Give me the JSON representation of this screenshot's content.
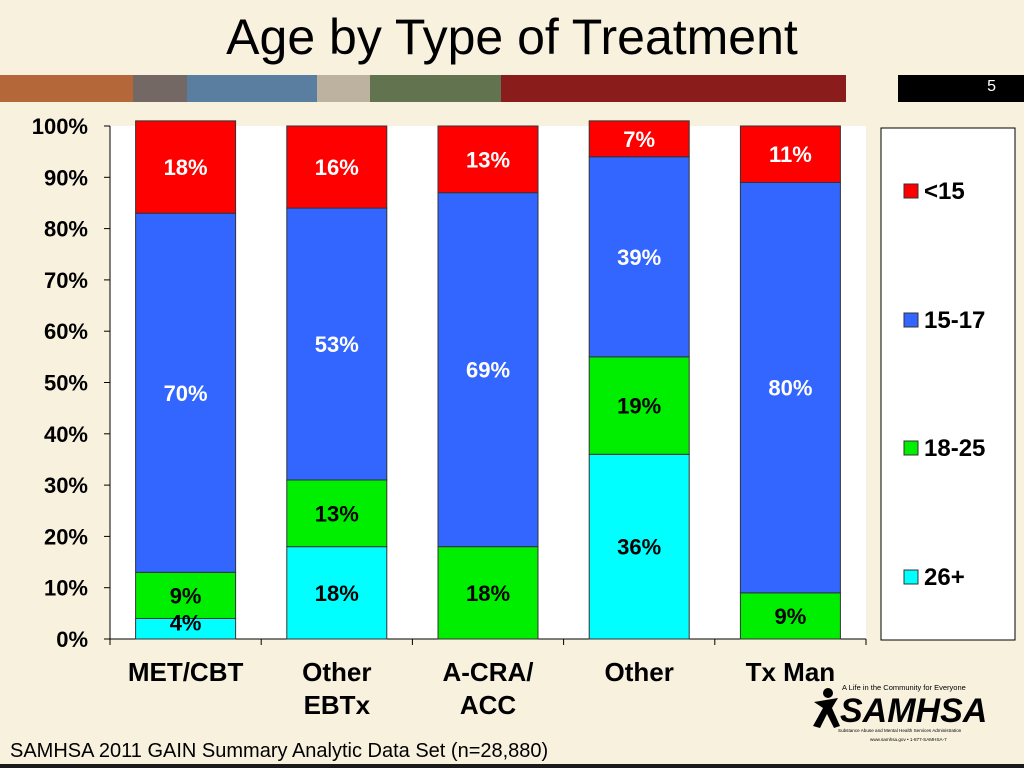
{
  "slide": {
    "title": "Age by Type of Treatment",
    "number": "5",
    "footer": "SAMHSA 2011 GAIN Summary Analytic Data Set (n=28,880)",
    "stripe_colors": [
      "#b4683a",
      "#736864",
      "#5a7ea0",
      "#bdb2a0",
      "#62744f",
      "#8b1c1c",
      "#f7f1de",
      "#000000"
    ]
  },
  "logo": {
    "tagline": "A Life in the Community for Everyone",
    "name": "SAMHSA",
    "subtitle": "Substance Abuse and Mental Health Services Administration",
    "contact": "www.samhsa.gov • 1-877-SAMHSA-7"
  },
  "chart_data": {
    "type": "bar",
    "stacked": true,
    "categories": [
      "MET/CBT",
      "Other EBTx",
      "A-CRA/ ACC",
      "Other",
      "Tx Man"
    ],
    "category_lines": [
      [
        "MET/CBT"
      ],
      [
        "Other",
        "EBTx"
      ],
      [
        "A-CRA/",
        "ACC"
      ],
      [
        "Other"
      ],
      [
        "Tx Man"
      ]
    ],
    "series": [
      {
        "name": "26+",
        "color": "#00ffff",
        "text_color": "#000000",
        "values": [
          4,
          18,
          0,
          36,
          0
        ],
        "labels": [
          "4%",
          "18%",
          "",
          "36%",
          ""
        ]
      },
      {
        "name": "18-25",
        "color": "#00ee00",
        "text_color": "#000000",
        "values": [
          9,
          13,
          18,
          19,
          9
        ],
        "labels": [
          "9%",
          "13%",
          "18%",
          "19%",
          "9%"
        ]
      },
      {
        "name": "15-17",
        "color": "#3366ff",
        "text_color": "#ffffff",
        "values": [
          70,
          53,
          69,
          39,
          80
        ],
        "labels": [
          "70%",
          "53%",
          "69%",
          "39%",
          "80%"
        ]
      },
      {
        "name": "<15",
        "color": "#ff0000",
        "text_color": "#ffffff",
        "values": [
          18,
          16,
          13,
          7,
          11
        ],
        "labels": [
          "18%",
          "16%",
          "13%",
          "7%",
          "11%"
        ]
      }
    ],
    "legend_order": [
      "<15",
      "15-17",
      "18-25",
      "26+"
    ],
    "ylim": [
      0,
      100
    ],
    "yticks": [
      "0%",
      "10%",
      "20%",
      "30%",
      "40%",
      "50%",
      "60%",
      "70%",
      "80%",
      "90%",
      "100%"
    ],
    "legend_position": "right",
    "grid": false
  }
}
